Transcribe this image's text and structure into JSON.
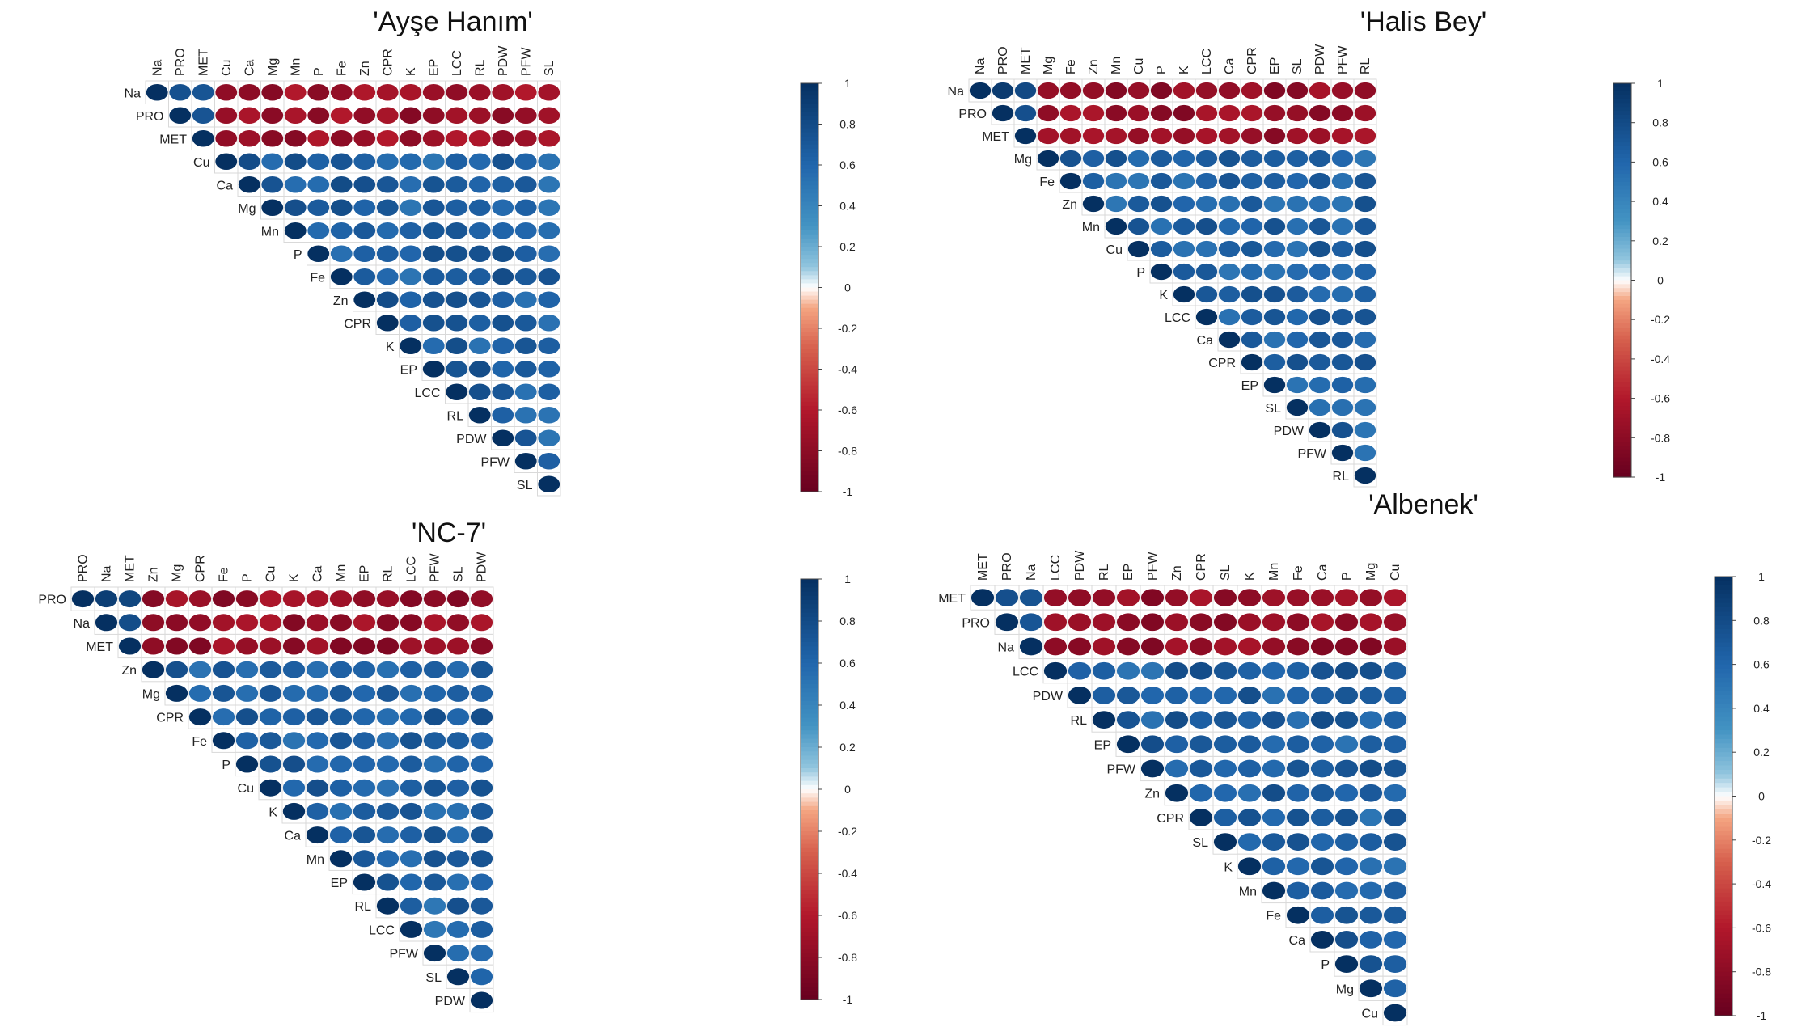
{
  "colors": {
    "neg": "#67001F",
    "mid": "#FFFFFF",
    "pos": "#053061",
    "grid": "#d9d9d9"
  },
  "colorbar_ticks": [
    "1",
    "0.8",
    "0.6",
    "0.4",
    "0.2",
    "0",
    "-0.2",
    "-0.4",
    "-0.6",
    "-0.8",
    "-1"
  ],
  "chart_data": [
    {
      "type": "heatmap",
      "subtype": "upper-triangular correlation matrix (ellipse glyphs)",
      "title": "'Ayşe Hanım'",
      "variables": [
        "Na",
        "PRO",
        "MET",
        "Cu",
        "Ca",
        "Mg",
        "Mn",
        "P",
        "Fe",
        "Zn",
        "CPR",
        "K",
        "EP",
        "LCC",
        "RL",
        "PDW",
        "PFW",
        "SL"
      ],
      "negative_block_size": 3,
      "neg_strength": 0.85,
      "pos_strength": 0.8,
      "color_scale": [
        -1,
        1
      ]
    },
    {
      "type": "heatmap",
      "subtype": "upper-triangular correlation matrix (ellipse glyphs)",
      "title": "'Halis Bey'",
      "variables": [
        "Na",
        "PRO",
        "MET",
        "Mg",
        "Fe",
        "Zn",
        "Mn",
        "Cu",
        "P",
        "K",
        "LCC",
        "Ca",
        "CPR",
        "EP",
        "SL",
        "PDW",
        "PFW",
        "RL"
      ],
      "negative_block_size": 3,
      "neg_strength": 0.88,
      "pos_strength": 0.78,
      "color_scale": [
        -1,
        1
      ]
    },
    {
      "type": "heatmap",
      "subtype": "upper-triangular correlation matrix (ellipse glyphs)",
      "title": "'NC-7'",
      "variables": [
        "PRO",
        "Na",
        "MET",
        "Zn",
        "Mg",
        "CPR",
        "Fe",
        "P",
        "Cu",
        "K",
        "Ca",
        "Mn",
        "EP",
        "RL",
        "LCC",
        "PFW",
        "SL",
        "PDW"
      ],
      "negative_block_size": 3,
      "neg_strength": 0.88,
      "pos_strength": 0.78,
      "color_scale": [
        -1,
        1
      ]
    },
    {
      "type": "heatmap",
      "subtype": "upper-triangular correlation matrix (ellipse glyphs)",
      "title": "'Albenek'",
      "variables": [
        "MET",
        "PRO",
        "Na",
        "LCC",
        "PDW",
        "RL",
        "EP",
        "PFW",
        "Zn",
        "CPR",
        "SL",
        "K",
        "Mn",
        "Fe",
        "Ca",
        "P",
        "Mg",
        "Cu"
      ],
      "negative_block_size": 3,
      "neg_strength": 0.88,
      "pos_strength": 0.8,
      "color_scale": [
        -1,
        1
      ]
    }
  ]
}
